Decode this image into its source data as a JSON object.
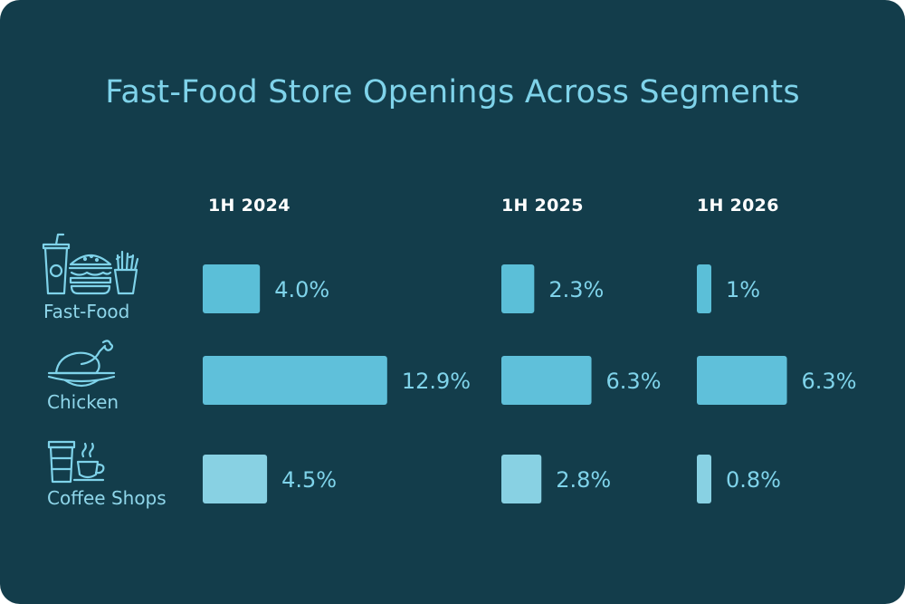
{
  "title": "Fast-Food Store Openings Across Segments",
  "columns": [
    "1H 2024",
    "1H 2025",
    "1H 2026"
  ],
  "rows": [
    {
      "label": "Fast-Food",
      "icon": "fast-food-icon"
    },
    {
      "label": "Chicken",
      "icon": "roast-chicken-icon"
    },
    {
      "label": "Coffee Shops",
      "icon": "coffee-cup-icon"
    }
  ],
  "colors": {
    "background": "#133d4b",
    "title": "#7fd3ea",
    "fast_food_bar": "#5bbfd8",
    "chicken_bar": "#5fc0da",
    "coffee_bar": "#88d1e3",
    "value_text": "#7fd3ea"
  },
  "chart_data": {
    "type": "bar",
    "title": "Fast-Food Store Openings Across Segments",
    "categories": [
      "Fast-Food",
      "Chicken",
      "Coffee Shops"
    ],
    "series": [
      {
        "name": "1H 2024",
        "values": [
          4.0,
          12.9,
          4.5
        ],
        "labels": [
          "4.0%",
          "12.9%",
          "4.5%"
        ]
      },
      {
        "name": "1H 2025",
        "values": [
          2.3,
          6.3,
          2.8
        ],
        "labels": [
          "2.3%",
          "6.3%",
          "2.8%"
        ]
      },
      {
        "name": "1H 2026",
        "values": [
          1.0,
          6.3,
          0.8
        ],
        "labels": [
          "1%",
          "6.3%",
          "0.8%"
        ]
      }
    ],
    "unit": "%",
    "grid": false,
    "legend": "none"
  }
}
